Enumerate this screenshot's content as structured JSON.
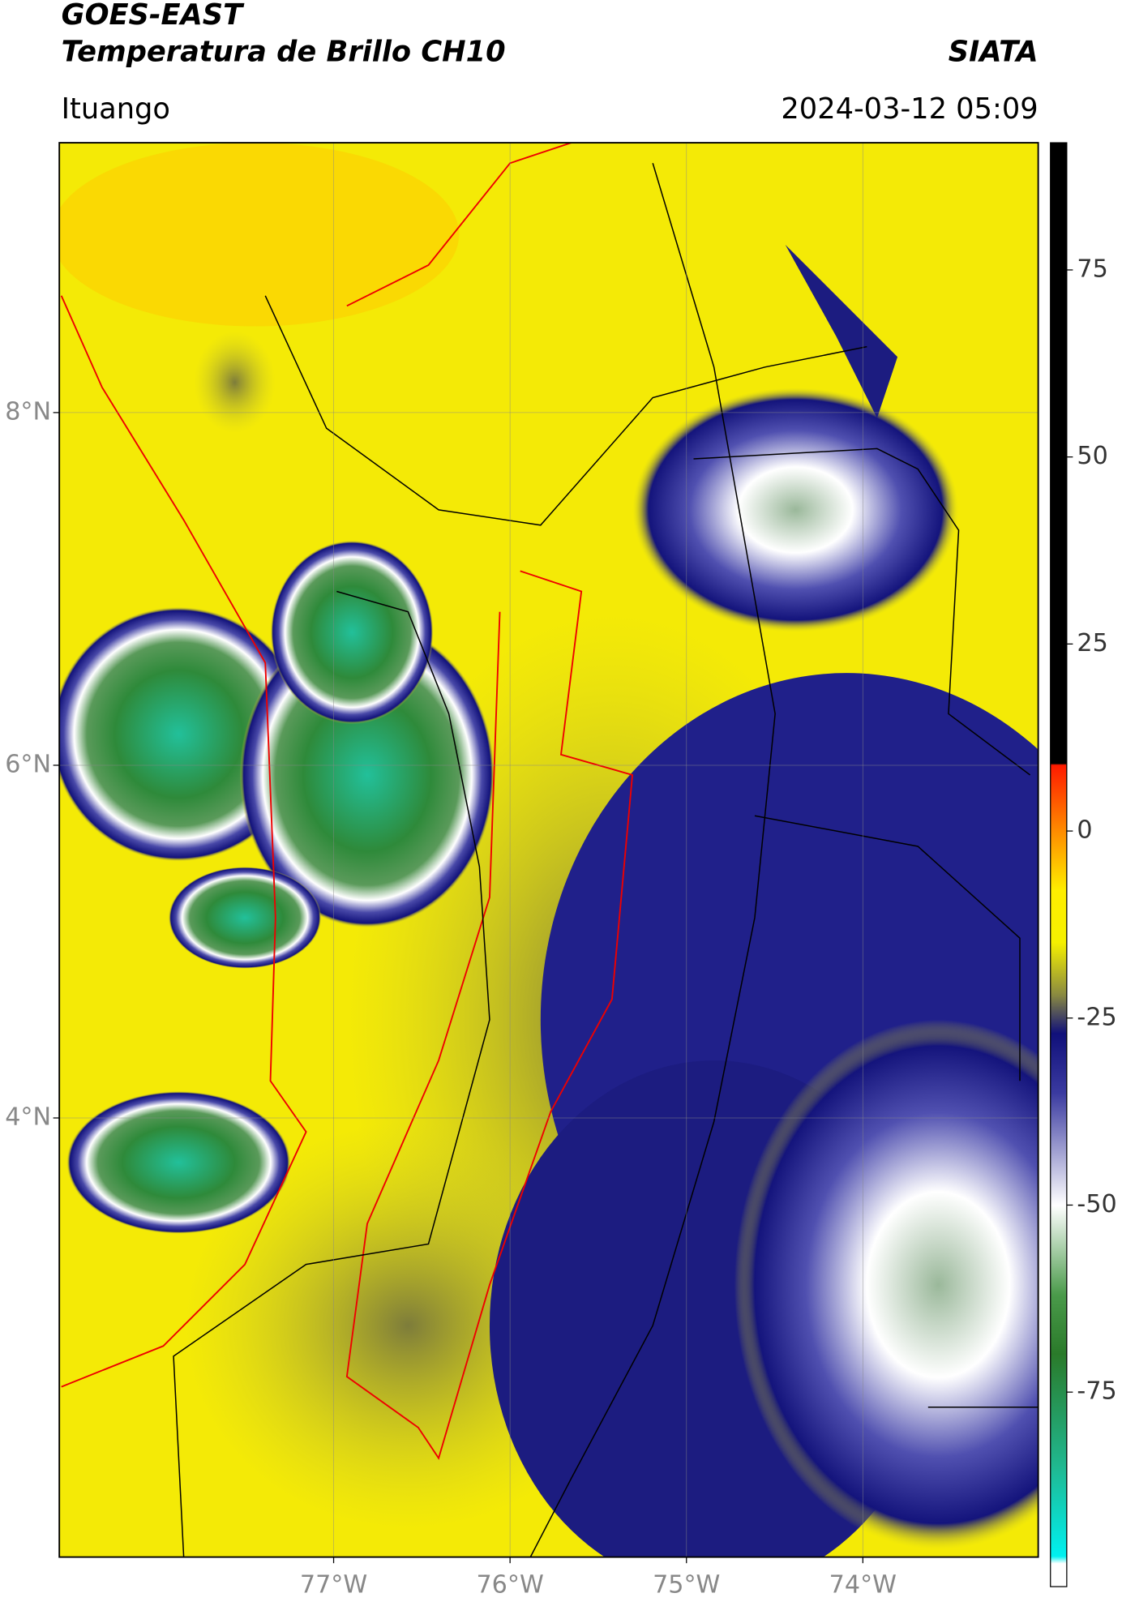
{
  "header": {
    "title": "GOES-EAST",
    "subtitle": "Temperatura de Brillo CH10",
    "source": "SIATA",
    "location": "Ituango",
    "datetime": "2024-03-12 05:09"
  },
  "map": {
    "xlim": [
      -78.555,
      -73.006
    ],
    "ylim": [
      1.51,
      9.53
    ],
    "xticks": [
      {
        "value": -77,
        "label": "77°W"
      },
      {
        "value": -76,
        "label": "76°W"
      },
      {
        "value": -75,
        "label": "75°W"
      },
      {
        "value": -74,
        "label": "74°W"
      }
    ],
    "yticks": [
      {
        "value": 8,
        "label": "8°N"
      },
      {
        "value": 6,
        "label": "6°N"
      },
      {
        "value": 4,
        "label": "4°N"
      }
    ],
    "grid": true
  },
  "colorbar": {
    "clim": [
      -101,
      92
    ],
    "ticks": [
      75,
      50,
      25,
      0,
      -25,
      -50,
      -75
    ]
  }
}
